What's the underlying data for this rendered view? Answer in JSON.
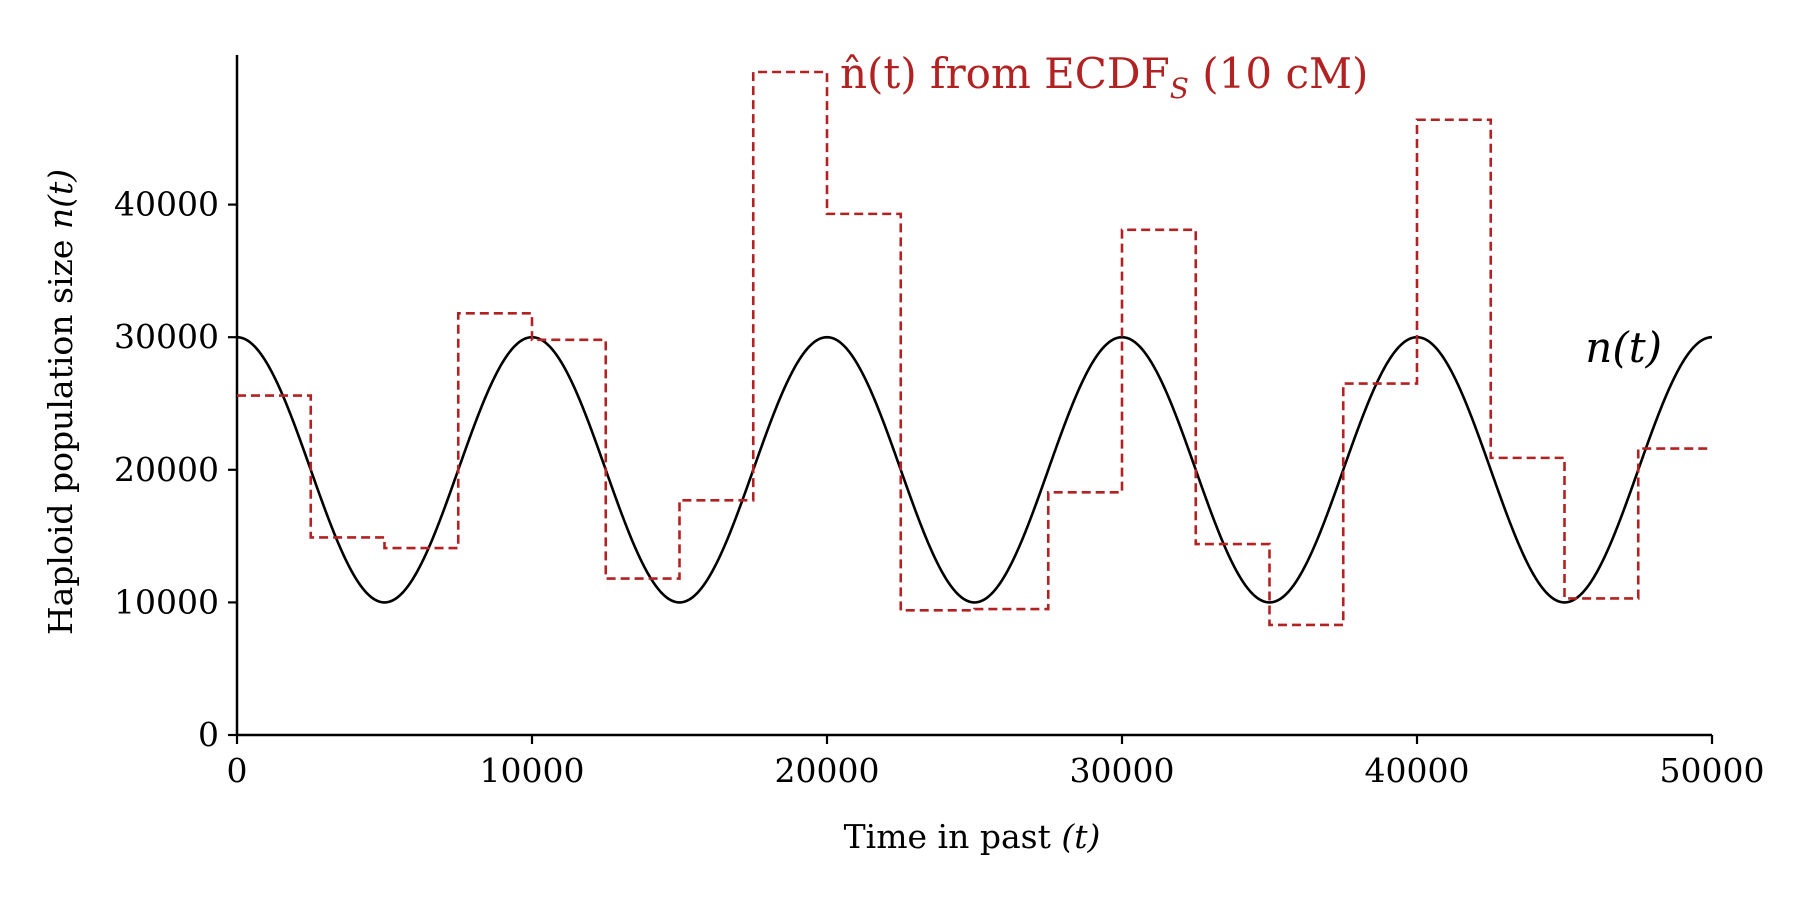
{
  "chart_data": {
    "type": "line",
    "title": "",
    "xlabel": "Time in past (t)",
    "ylabel": "Haploid population size n(t)",
    "xlim": [
      0,
      50000
    ],
    "ylim": [
      0,
      50000
    ],
    "x_ticks": [
      0,
      10000,
      20000,
      30000,
      40000,
      50000
    ],
    "y_ticks": [
      0,
      10000,
      20000,
      30000,
      40000
    ],
    "x_tick_labels": [
      "0",
      "10000",
      "20000",
      "30000",
      "40000",
      "50000"
    ],
    "y_tick_labels": [
      "0",
      "10000",
      "20000",
      "30000",
      "40000"
    ],
    "grid": false,
    "series": [
      {
        "name": "n(t)",
        "style": "solid",
        "color": "#000000",
        "formula": "20000 + 10000*cos(2*pi*t/10000)",
        "period": 10000,
        "mean": 20000,
        "amplitude": 10000
      },
      {
        "name": "n̂(t) from ECDF_S (10 cM)",
        "style": "dashed-step",
        "color": "#b22222",
        "bin_width": 2500,
        "bin_edges": [
          0,
          2500,
          5000,
          7500,
          10000,
          12500,
          15000,
          17500,
          20000,
          22500,
          25000,
          27500,
          30000,
          32500,
          35000,
          37500,
          40000,
          42500,
          45000,
          47500,
          50000
        ],
        "values": [
          25600,
          14900,
          14100,
          31800,
          29800,
          11800,
          17700,
          50000,
          39300,
          9400,
          9500,
          18300,
          38100,
          14400,
          8300,
          26500,
          46400,
          20900,
          10300,
          21600
        ]
      }
    ],
    "annotations": {
      "true_label": "n(t)",
      "estimate_label_hat": "n̂(t) from ECDF",
      "estimate_label_sub": "S",
      "estimate_label_tail": " (10 cM)",
      "xlabel_main": "Time in past ",
      "xlabel_var": "(t)",
      "ylabel_main": "Haploid population size ",
      "ylabel_var": "n(t)"
    }
  }
}
